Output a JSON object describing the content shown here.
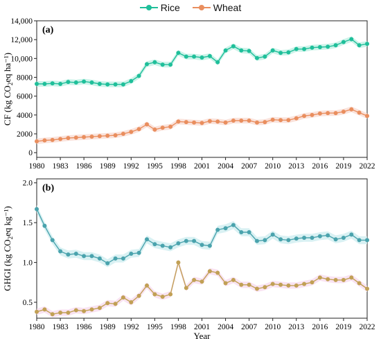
{
  "legend": {
    "rice": "Rice",
    "wheat": "Wheat"
  },
  "colors": {
    "rice": "#1fbf9a",
    "rice_band": "#bff0e4",
    "wheat": "#e98e5e",
    "wheat_band": "#f9dcd3",
    "rice_b": "#4aa3ad",
    "rice_b_band": "#cfeef0",
    "wheat_b": "#c1a055",
    "wheat_b_band": "#f7dcef"
  },
  "chart_data": [
    {
      "type": "line",
      "panel_label": "(a)",
      "ylabel": "CF (kg CO2eq ha⁻¹)",
      "xlabel": "",
      "ylim": [
        -500,
        14000
      ],
      "yticks": [
        0,
        2000,
        4000,
        6000,
        8000,
        10000,
        12000,
        14000
      ],
      "ytick_labels": [
        "0",
        "2000",
        "4000",
        "6000",
        "8000",
        "10,000",
        "12,000",
        "14,000"
      ],
      "xticks": [
        1980,
        1983,
        1986,
        1989,
        1992,
        1995,
        1998,
        2001,
        2004,
        2007,
        2010,
        2013,
        2016,
        2019,
        2022
      ],
      "x": [
        1980,
        1981,
        1982,
        1983,
        1984,
        1985,
        1986,
        1987,
        1988,
        1989,
        1990,
        1991,
        1992,
        1993,
        1994,
        1995,
        1996,
        1997,
        1998,
        1999,
        2000,
        2001,
        2002,
        2003,
        2004,
        2005,
        2006,
        2007,
        2008,
        2009,
        2010,
        2011,
        2012,
        2013,
        2014,
        2015,
        2016,
        2017,
        2018,
        2019,
        2020,
        2021,
        2022
      ],
      "series": [
        {
          "name": "Rice",
          "values": [
            7300,
            7300,
            7350,
            7300,
            7500,
            7450,
            7550,
            7450,
            7300,
            7250,
            7250,
            7250,
            7600,
            8150,
            9400,
            9600,
            9350,
            9350,
            10600,
            10200,
            10200,
            10100,
            10250,
            9600,
            10850,
            11300,
            10850,
            10800,
            10050,
            10200,
            10850,
            10600,
            10650,
            11000,
            11000,
            11150,
            11200,
            11250,
            11400,
            11750,
            12050,
            11400,
            11550
          ]
        },
        {
          "name": "Wheat",
          "values": [
            1200,
            1300,
            1350,
            1450,
            1550,
            1600,
            1650,
            1700,
            1750,
            1800,
            1850,
            2000,
            2200,
            2500,
            3000,
            2450,
            2650,
            2750,
            3300,
            3250,
            3200,
            3150,
            3350,
            3300,
            3200,
            3400,
            3400,
            3400,
            3200,
            3250,
            3500,
            3450,
            3450,
            3650,
            3900,
            4000,
            4150,
            4200,
            4200,
            4350,
            4600,
            4250,
            3900
          ]
        }
      ]
    },
    {
      "type": "line",
      "panel_label": "(b)",
      "ylabel": "GHGI (kg CO2eq kg⁻¹)",
      "xlabel": "Year",
      "ylim": [
        0.3,
        2.05
      ],
      "yticks": [
        0.5,
        1.0,
        1.5,
        2.0
      ],
      "ytick_labels": [
        "0.5",
        "1.0",
        "1.5",
        "2.0"
      ],
      "xticks": [
        1980,
        1983,
        1986,
        1989,
        1992,
        1995,
        1998,
        2001,
        2004,
        2007,
        2010,
        2013,
        2016,
        2019,
        2022
      ],
      "x": [
        1980,
        1981,
        1982,
        1983,
        1984,
        1985,
        1986,
        1987,
        1988,
        1989,
        1990,
        1991,
        1992,
        1993,
        1994,
        1995,
        1996,
        1997,
        1998,
        1999,
        2000,
        2001,
        2002,
        2003,
        2004,
        2005,
        2006,
        2007,
        2008,
        2009,
        2010,
        2011,
        2012,
        2013,
        2014,
        2015,
        2016,
        2017,
        2018,
        2019,
        2020,
        2021,
        2022
      ],
      "series": [
        {
          "name": "Rice",
          "values": [
            1.67,
            1.46,
            1.28,
            1.14,
            1.1,
            1.11,
            1.08,
            1.08,
            1.05,
            0.99,
            1.05,
            1.05,
            1.11,
            1.12,
            1.29,
            1.23,
            1.21,
            1.19,
            1.24,
            1.27,
            1.27,
            1.22,
            1.21,
            1.41,
            1.43,
            1.47,
            1.38,
            1.38,
            1.27,
            1.28,
            1.35,
            1.29,
            1.28,
            1.3,
            1.31,
            1.31,
            1.33,
            1.34,
            1.29,
            1.31,
            1.35,
            1.28,
            1.28
          ]
        },
        {
          "name": "Wheat",
          "values": [
            0.38,
            0.41,
            0.35,
            0.37,
            0.37,
            0.4,
            0.39,
            0.41,
            0.43,
            0.49,
            0.48,
            0.56,
            0.5,
            0.58,
            0.71,
            0.6,
            0.57,
            0.6,
            1.0,
            0.68,
            0.78,
            0.76,
            0.89,
            0.87,
            0.74,
            0.78,
            0.72,
            0.72,
            0.67,
            0.69,
            0.73,
            0.72,
            0.71,
            0.71,
            0.73,
            0.75,
            0.81,
            0.79,
            0.78,
            0.78,
            0.81,
            0.74,
            0.67
          ]
        }
      ]
    }
  ]
}
